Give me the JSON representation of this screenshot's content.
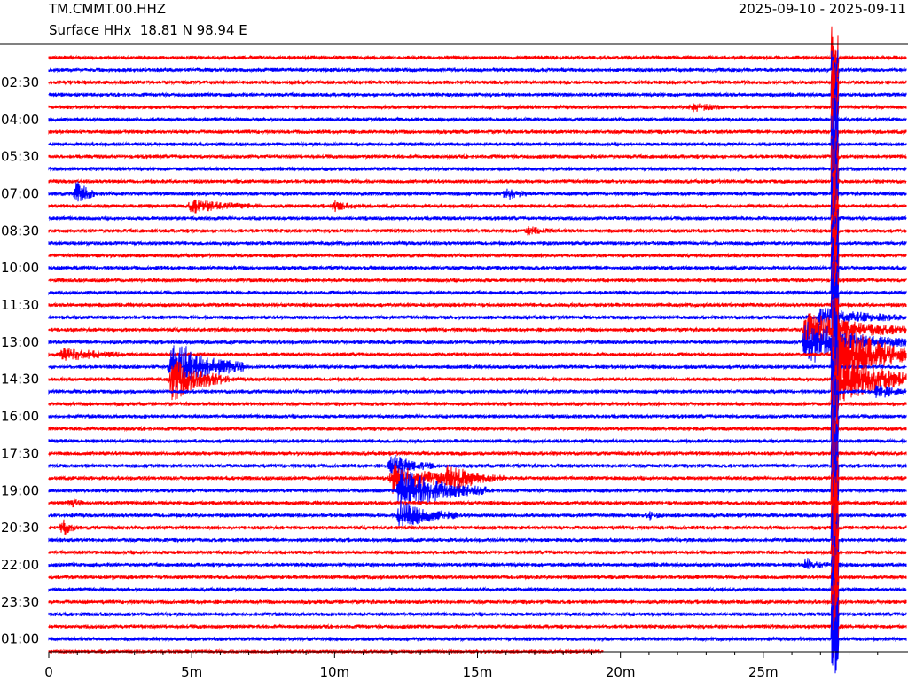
{
  "header": {
    "station": "TM.CMMT.00.HHZ",
    "location": "Surface HHx  18.81 N 98.94 E",
    "date_range": "2025-09-10 - 2025-09-11"
  },
  "colors": {
    "alt_a": "#ff0000",
    "alt_b": "#0000ff",
    "axis": "#000000"
  },
  "chart_data": {
    "type": "line",
    "title": "",
    "xlabel": "",
    "ylabel": "",
    "trace_minutes_per_line": 30,
    "xlim_minutes": [
      0,
      30
    ],
    "x_ticks": [
      {
        "value": 0,
        "label": "0"
      },
      {
        "value": 5,
        "label": "5m"
      },
      {
        "value": 10,
        "label": "10m"
      },
      {
        "value": 15,
        "label": "15m"
      },
      {
        "value": 20,
        "label": "20m"
      },
      {
        "value": 25,
        "label": "25m"
      }
    ],
    "y_ticks": [
      {
        "row": 3,
        "label": "02:30"
      },
      {
        "row": 6,
        "label": "04:00"
      },
      {
        "row": 9,
        "label": "05:30"
      },
      {
        "row": 12,
        "label": "07:00"
      },
      {
        "row": 15,
        "label": "08:30"
      },
      {
        "row": 18,
        "label": "10:00"
      },
      {
        "row": 21,
        "label": "11:30"
      },
      {
        "row": 24,
        "label": "13:00"
      },
      {
        "row": 27,
        "label": "14:30"
      },
      {
        "row": 30,
        "label": "16:00"
      },
      {
        "row": 33,
        "label": "17:30"
      },
      {
        "row": 36,
        "label": "19:00"
      },
      {
        "row": 39,
        "label": "20:30"
      },
      {
        "row": 42,
        "label": "22:00"
      },
      {
        "row": 45,
        "label": "23:30"
      },
      {
        "row": 48,
        "label": "01:00"
      }
    ],
    "row_count": 48,
    "last_row_end_minute": 19.4,
    "events": [
      {
        "row": 4,
        "minute": 22.5,
        "amp": 0.5,
        "dur": 1.2
      },
      {
        "row": 11,
        "minute": 1.0,
        "amp": 2.0,
        "dur": 0.6
      },
      {
        "row": 11,
        "minute": 16.0,
        "amp": 0.8,
        "dur": 0.8
      },
      {
        "row": 12,
        "minute": 5.0,
        "amp": 0.8,
        "dur": 2.5
      },
      {
        "row": 12,
        "minute": 10.0,
        "amp": 0.6,
        "dur": 1.0
      },
      {
        "row": 14,
        "minute": 16.8,
        "amp": 0.5,
        "dur": 0.8
      },
      {
        "row": 21,
        "minute": 27.0,
        "amp": 1.2,
        "dur": 3.5
      },
      {
        "row": 22,
        "minute": 26.5,
        "amp": 2.5,
        "dur": 3.5
      },
      {
        "row": 23,
        "minute": 26.5,
        "amp": 3.0,
        "dur": 3.5
      },
      {
        "row": 24,
        "minute": 0.5,
        "amp": 1.0,
        "dur": 2.0
      },
      {
        "row": 24,
        "minute": 27.5,
        "amp": 5.0,
        "dur": 3.0
      },
      {
        "row": 25,
        "minute": 4.3,
        "amp": 4.0,
        "dur": 2.5
      },
      {
        "row": 26,
        "minute": 4.3,
        "amp": 3.0,
        "dur": 2.0
      },
      {
        "row": 26,
        "minute": 27.5,
        "amp": 4.0,
        "dur": 3.0
      },
      {
        "row": 27,
        "minute": 29.0,
        "amp": 1.0,
        "dur": 1.0
      },
      {
        "row": 33,
        "minute": 12.0,
        "amp": 1.5,
        "dur": 1.5
      },
      {
        "row": 34,
        "minute": 12.0,
        "amp": 2.0,
        "dur": 3.0
      },
      {
        "row": 34,
        "minute": 14.0,
        "amp": 1.5,
        "dur": 2.0
      },
      {
        "row": 35,
        "minute": 12.3,
        "amp": 3.0,
        "dur": 3.0
      },
      {
        "row": 36,
        "minute": 0.8,
        "amp": 0.5,
        "dur": 0.5
      },
      {
        "row": 37,
        "minute": 12.3,
        "amp": 2.0,
        "dur": 2.0
      },
      {
        "row": 37,
        "minute": 21.0,
        "amp": 0.5,
        "dur": 0.5
      },
      {
        "row": 38,
        "minute": 0.5,
        "amp": 1.0,
        "dur": 0.5
      },
      {
        "row": 41,
        "minute": 26.5,
        "amp": 0.8,
        "dur": 0.8
      }
    ],
    "big_event": {
      "minute": 27.5,
      "from_row": 0,
      "to_row": 48,
      "amp": 6.0,
      "dur": 0.5
    }
  }
}
